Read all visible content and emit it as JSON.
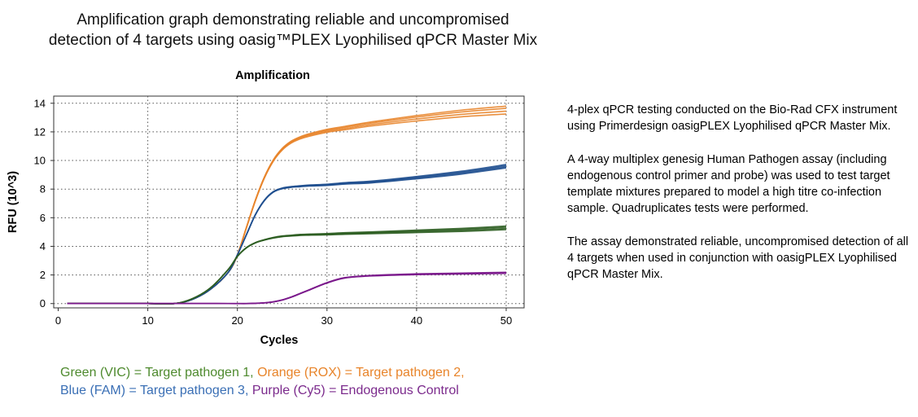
{
  "heading": {
    "line1": "Amplification graph demonstrating reliable and uncompromised",
    "line2": "detection of 4 targets using oasig™PLEX Lyophilised qPCR Master Mix"
  },
  "legend": {
    "line1": [
      {
        "text": "Green (VIC) = Target pathogen 1, ",
        "color": "#4e8a2e"
      },
      {
        "text": "Orange (ROX) = Target pathogen 2,",
        "color": "#e8842a"
      }
    ],
    "line2": [
      {
        "text": "Blue (FAM) = Target pathogen 3, ",
        "color": "#3a6fb5"
      },
      {
        "text": "Purple (Cy5) = Endogenous  Control",
        "color": "#7b2a8c"
      }
    ]
  },
  "description": {
    "p1": "4-plex qPCR testing conducted on the Bio-Rad CFX instrument using Primerdesign oasigPLEX Lyophilised qPCR Master Mix.",
    "p2": "A 4-way multiplex genesig Human Pathogen assay (including endogenous control primer and probe) was used to test target template mixtures prepared to model a high titre co-infection sample. Quadruplicates tests were performed.",
    "p3": "The assay demonstrated reliable, uncompromised detection of all 4 targets when used in conjunction with oasigPLEX Lyophilised qPCR Master Mix."
  },
  "chart_data": {
    "type": "line",
    "title": "Amplification",
    "xlabel": "Cycles",
    "ylabel": "RFU (10^3)",
    "xlim": [
      -0.5,
      52
    ],
    "ylim": [
      -0.3,
      14.5
    ],
    "xticks": [
      0,
      10,
      20,
      30,
      40,
      50
    ],
    "yticks": [
      0,
      2,
      4,
      6,
      8,
      10,
      12,
      14
    ],
    "grid": true,
    "replicates_per_target": 4,
    "x": [
      1,
      4,
      7,
      10,
      13,
      15,
      17,
      19,
      20,
      21,
      22,
      23,
      24,
      25,
      26,
      27,
      28,
      30,
      32,
      35,
      40,
      45,
      50
    ],
    "series": [
      {
        "color": "#e8842a",
        "values": [
          0,
          0,
          0,
          0,
          0,
          0.3,
          1.0,
          2.2,
          3.4,
          5.3,
          7.2,
          8.8,
          10.0,
          10.8,
          11.3,
          11.6,
          11.8,
          12.1,
          12.3,
          12.6,
          13.0,
          13.35,
          13.6
        ],
        "replicate_offsets": [
          0.2,
          0.05,
          -0.15,
          -0.35
        ]
      },
      {
        "color": "#1f4f8f",
        "values": [
          0,
          0,
          0,
          0,
          0,
          0.3,
          1.0,
          2.2,
          3.4,
          4.8,
          6.2,
          7.2,
          7.8,
          8.05,
          8.15,
          8.2,
          8.25,
          8.3,
          8.4,
          8.5,
          8.8,
          9.15,
          9.6
        ],
        "replicate_offsets": [
          0.12,
          0.04,
          -0.04,
          -0.12
        ]
      },
      {
        "color": "#2e5e22",
        "values": [
          0,
          0,
          0,
          0,
          0,
          0.35,
          1.1,
          2.4,
          3.3,
          3.9,
          4.25,
          4.45,
          4.6,
          4.7,
          4.75,
          4.8,
          4.82,
          4.85,
          4.9,
          4.95,
          5.05,
          5.15,
          5.3
        ],
        "replicate_offsets": [
          0.12,
          0.04,
          -0.05,
          -0.13
        ]
      },
      {
        "color": "#7b1a8c",
        "values": [
          0,
          0,
          0,
          0,
          0,
          0,
          0,
          0,
          0,
          0,
          0.02,
          0.05,
          0.12,
          0.25,
          0.45,
          0.7,
          0.95,
          1.45,
          1.8,
          1.95,
          2.05,
          2.1,
          2.15
        ],
        "replicate_offsets": [
          0.04,
          0.01,
          -0.01,
          -0.04
        ]
      }
    ]
  }
}
